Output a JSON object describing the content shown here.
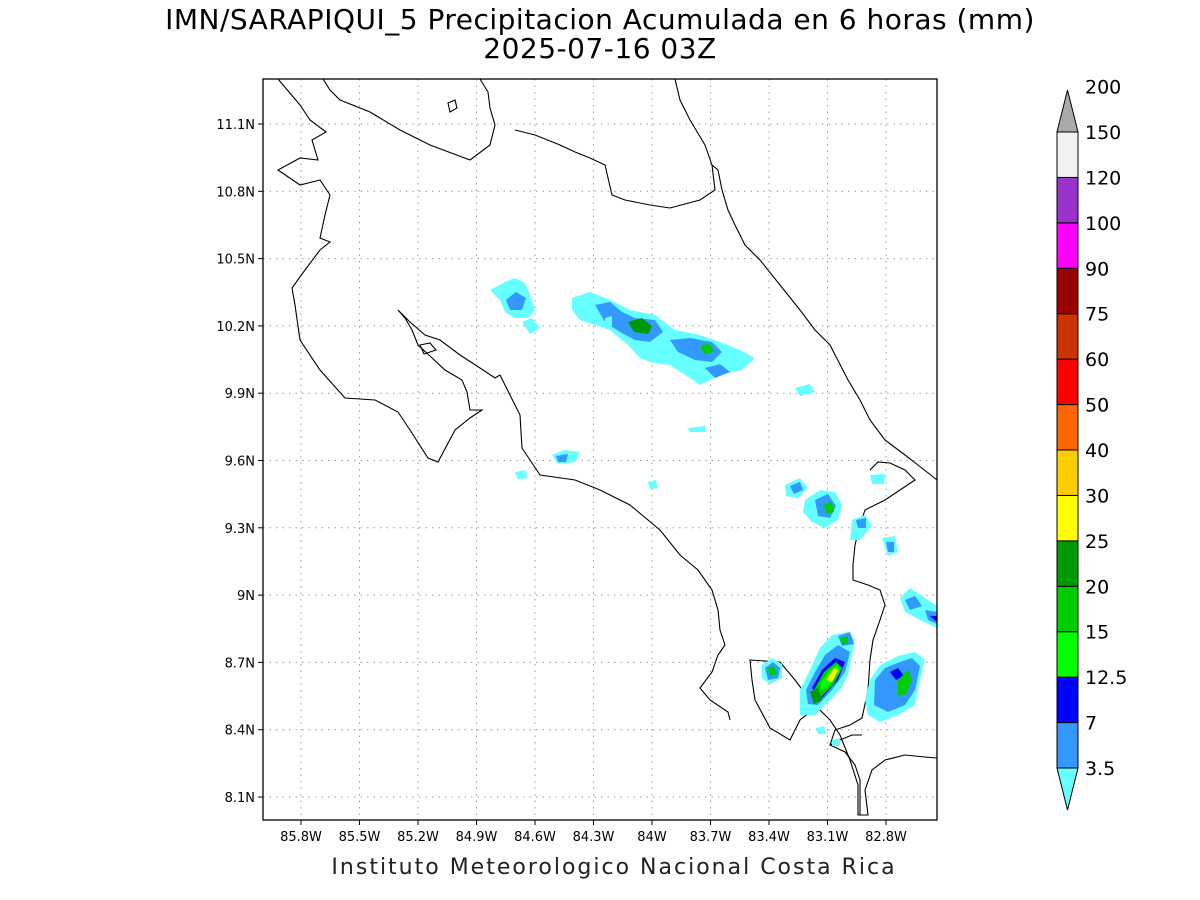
{
  "title": {
    "line1": "IMN/SARAPIQUI_5 Precipitacion Acumulada en 6 horas (mm)",
    "line2": "2025-07-16 03Z"
  },
  "footer": "Instituto Meteorologico Nacional Costa Rica",
  "map": {
    "lon_range": [
      -86.0,
      -83.05
    ],
    "lat_range": [
      8.0,
      11.3
    ],
    "x_ticks": [
      "85.8W",
      "85.5W",
      "85.2W",
      "84.9W",
      "84.6W",
      "84.3W",
      "84W",
      "83.7W",
      "83.4W",
      "83.1W",
      "82.8W"
    ],
    "y_ticks": [
      "11.1N",
      "10.8N",
      "10.5N",
      "10.2N",
      "9.9N",
      "9.6N",
      "9.3N",
      "9N",
      "8.7N",
      "8.4N",
      "8.1N"
    ],
    "grid": "dotted"
  },
  "colorbar": {
    "levels": [
      "3.5",
      "7",
      "12.5",
      "15",
      "20",
      "25",
      "30",
      "40",
      "50",
      "60",
      "75",
      "90",
      "100",
      "120",
      "150",
      "200"
    ],
    "colors": [
      "#66ffff",
      "#3399ff",
      "#0000ff",
      "#00ff00",
      "#00cc00",
      "#009900",
      "#ffff00",
      "#ffcc00",
      "#ff6600",
      "#ff0000",
      "#cc3300",
      "#990000",
      "#ff00ff",
      "#9933cc",
      "#f2f2f2",
      "#aaaaaa"
    ]
  }
}
